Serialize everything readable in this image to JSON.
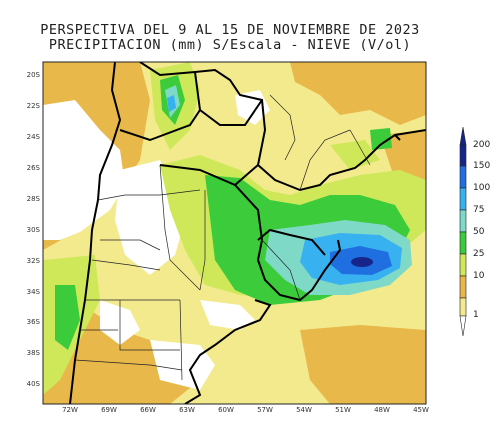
{
  "title": {
    "line1": "PERSPECTIVA DEL 9 AL 15 DE NOVIEMBRE DE 2023",
    "line2": "PRECIPITACION (mm) S/Escala - NIEVE (V/ol)"
  },
  "axes": {
    "y_ticks": [
      "20S",
      "22S",
      "24S",
      "26S",
      "28S",
      "30S",
      "32S",
      "34S",
      "36S",
      "38S",
      "40S"
    ],
    "x_ticks": [
      "72W",
      "69W",
      "66W",
      "63W",
      "60W",
      "57W",
      "54W",
      "51W",
      "48W",
      "45W"
    ]
  },
  "colorbar": {
    "levels": [
      "1",
      "10",
      "25",
      "50",
      "75",
      "100",
      "150",
      "200"
    ],
    "colors": {
      "1": "#f3ea8e",
      "10": "#e8b84a",
      "25": "#cfe85a",
      "50": "#3bcb3b",
      "75": "#7fd9c7",
      "100": "#38b1f0",
      "150": "#1f6fe0",
      "200": "#17258a"
    }
  },
  "map_colors": {
    "none": "#ffffff",
    "borders": "#000000",
    "provinces": "#222222"
  }
}
